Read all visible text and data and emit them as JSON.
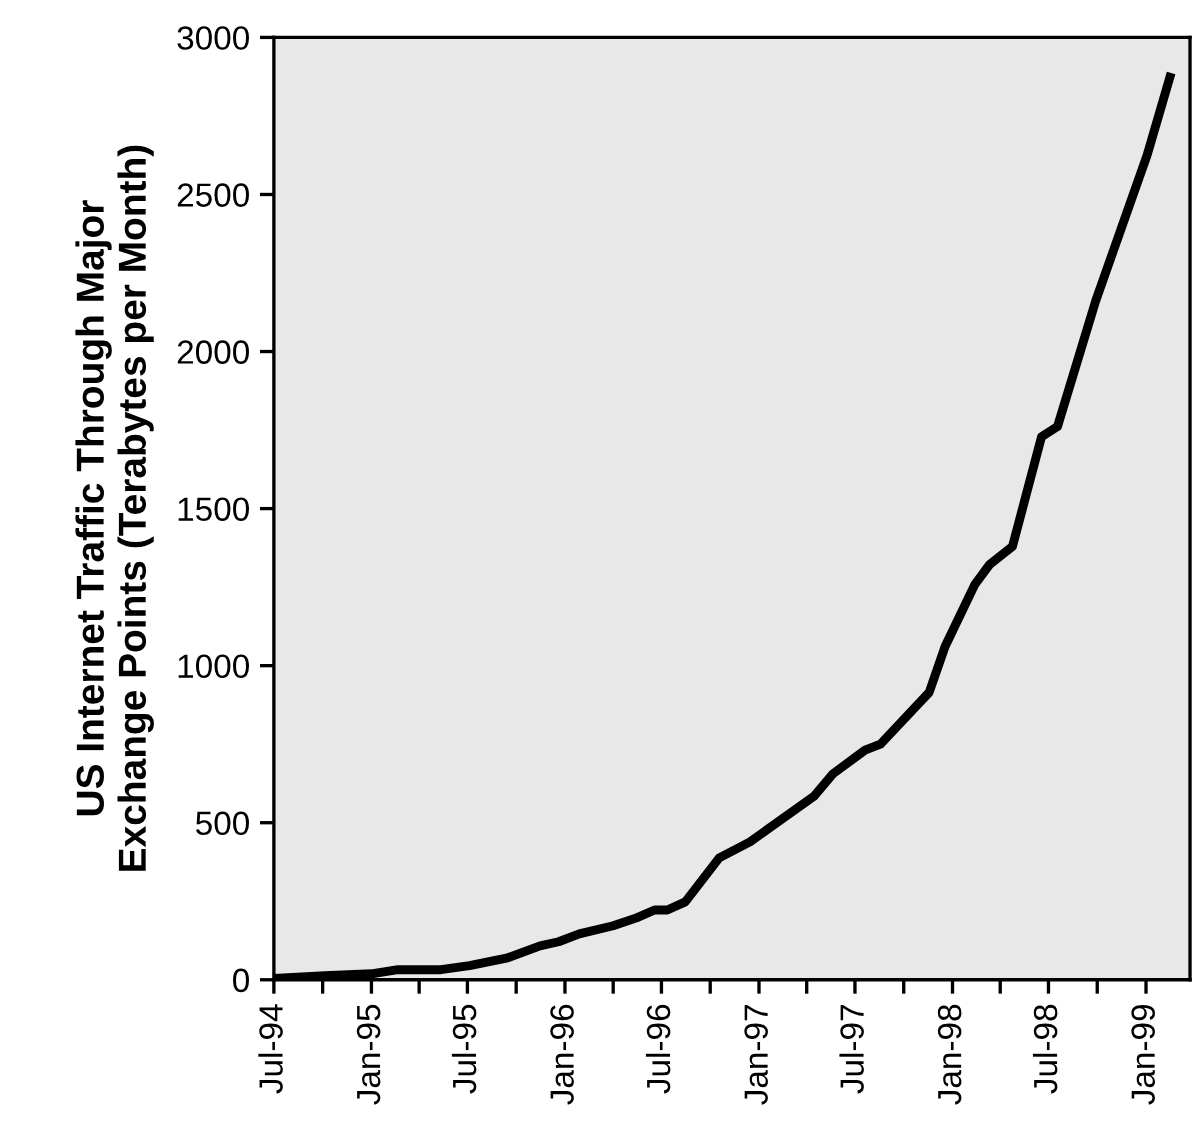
{
  "chart_data": {
    "type": "line",
    "ylabel": "US Internet Traffic Through Major\nExchange Points (Terabytes per Month)",
    "x": [
      "1994-07-10",
      "1994-10-05",
      "1995-01-01",
      "1995-02-20",
      "1995-05-12",
      "1995-07-05",
      "1995-09-15",
      "1995-11-15",
      "1995-12-20",
      "1996-01-28",
      "1996-04-01",
      "1996-05-15",
      "1996-06-18",
      "1996-07-12",
      "1996-08-15",
      "1996-10-18",
      "1996-12-15",
      "1997-04-15",
      "1997-05-20",
      "1997-07-20",
      "1997-08-18",
      "1997-11-18",
      "1997-12-18",
      "1998-02-12",
      "1998-03-12",
      "1998-04-24",
      "1998-06-18",
      "1998-07-18",
      "1998-09-28",
      "1999-01-03",
      "1999-02-15"
    ],
    "series": [
      {
        "color": "#000000",
        "values": [
          5,
          13,
          19,
          32,
          32,
          45,
          70,
          108,
          121,
          146,
          172,
          197,
          222,
          222,
          248,
          388,
          439,
          585,
          655,
          731,
          750,
          915,
          1061,
          1258,
          1322,
          1379,
          1729,
          1761,
          2161,
          2625,
          2873
        ]
      }
    ],
    "xlim": [
      "1994-07-01",
      "1999-03-25"
    ],
    "xticks": [
      {
        "value": "1994-07-01",
        "label": "Jul-94"
      },
      {
        "value": "1994-10-01",
        "label": null
      },
      {
        "value": "1995-01-01",
        "label": "Jan-95"
      },
      {
        "value": "1995-04-01",
        "label": null
      },
      {
        "value": "1995-07-01",
        "label": "Jul-95"
      },
      {
        "value": "1995-10-01",
        "label": null
      },
      {
        "value": "1996-01-01",
        "label": "Jan-96"
      },
      {
        "value": "1996-04-01",
        "label": null
      },
      {
        "value": "1996-07-01",
        "label": "Jul-96"
      },
      {
        "value": "1996-10-01",
        "label": null
      },
      {
        "value": "1997-01-01",
        "label": "Jan-97"
      },
      {
        "value": "1997-04-01",
        "label": null
      },
      {
        "value": "1997-07-01",
        "label": "Jul-97"
      },
      {
        "value": "1997-10-01",
        "label": null
      },
      {
        "value": "1998-01-01",
        "label": "Jan-98"
      },
      {
        "value": "1998-04-01",
        "label": null
      },
      {
        "value": "1998-07-01",
        "label": "Jul-98"
      },
      {
        "value": "1998-10-01",
        "label": null
      },
      {
        "value": "1999-01-01",
        "label": "Jan-99"
      }
    ],
    "ylim": [
      0,
      3000
    ],
    "yticks": [
      0,
      500,
      1000,
      1500,
      2000,
      2500,
      3000
    ],
    "line_style": "solid",
    "marker": "none",
    "grid": false,
    "legend": false
  }
}
